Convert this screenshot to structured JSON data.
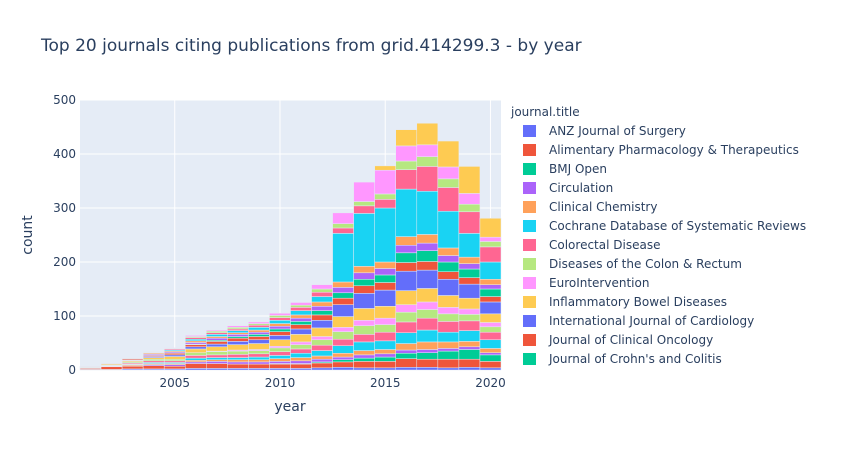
{
  "chart_data": {
    "type": "bar",
    "stacked": true,
    "title": "Top 20 journals citing publications from grid.414299.3 - by year",
    "xlabel": "year",
    "ylabel": "count",
    "xlim": [
      2000.5,
      2020.5
    ],
    "ylim": [
      0,
      500
    ],
    "x_ticks": [
      2005,
      2010,
      2015,
      2020
    ],
    "y_ticks": [
      0,
      100,
      200,
      300,
      400,
      500
    ],
    "legend": {
      "title": "journal.title",
      "placement": "right"
    },
    "years": [
      2001,
      2002,
      2003,
      2004,
      2005,
      2006,
      2007,
      2008,
      2009,
      2010,
      2011,
      2012,
      2013,
      2014,
      2015,
      2016,
      2017,
      2018,
      2019,
      2020
    ],
    "series": [
      {
        "name": "ANZ Journal of Surgery",
        "color": "#636efa",
        "values": [
          1,
          1,
          2,
          2,
          2,
          3,
          3,
          3,
          3,
          3,
          3,
          4,
          5,
          4,
          4,
          5,
          5,
          4,
          5,
          4
        ]
      },
      {
        "name": "Alimentary Pharmacology & Therapeutics",
        "color": "#EF553B",
        "values": [
          2,
          5,
          5,
          6,
          5,
          9,
          9,
          8,
          8,
          8,
          8,
          9,
          10,
          12,
          12,
          16,
          15,
          16,
          15,
          12
        ]
      },
      {
        "name": "BMJ Open",
        "color": "#00cc96",
        "values": [
          0,
          0,
          0,
          0,
          0,
          0,
          0,
          0,
          0,
          1,
          1,
          2,
          4,
          6,
          8,
          10,
          12,
          15,
          18,
          12
        ]
      },
      {
        "name": "Circulation",
        "color": "#ab63fa",
        "values": [
          0,
          0,
          1,
          2,
          3,
          3,
          4,
          4,
          4,
          4,
          5,
          5,
          5,
          6,
          6,
          6,
          6,
          5,
          5,
          4
        ]
      },
      {
        "name": "Clinical Chemistry",
        "color": "#FFA15A",
        "values": [
          0,
          1,
          2,
          2,
          2,
          3,
          3,
          4,
          4,
          5,
          6,
          6,
          7,
          8,
          8,
          12,
          14,
          12,
          10,
          8
        ]
      },
      {
        "name": "Cochrane Database of Systematic Reviews",
        "color": "#19d3f3",
        "values": [
          0,
          0,
          1,
          2,
          2,
          4,
          4,
          4,
          5,
          6,
          8,
          10,
          14,
          16,
          16,
          20,
          22,
          18,
          20,
          16
        ]
      },
      {
        "name": "Colorectal Disease",
        "color": "#FF6692",
        "values": [
          1,
          1,
          2,
          3,
          3,
          5,
          5,
          6,
          6,
          7,
          8,
          10,
          12,
          14,
          16,
          20,
          22,
          20,
          18,
          14
        ]
      },
      {
        "name": "Diseases of the Colon & Rectum",
        "color": "#B6E880",
        "values": [
          1,
          1,
          2,
          3,
          3,
          5,
          6,
          6,
          6,
          7,
          8,
          10,
          14,
          16,
          14,
          18,
          16,
          14,
          12,
          10
        ]
      },
      {
        "name": "EuroIntervention",
        "color": "#FF97FF",
        "values": [
          0,
          0,
          0,
          0,
          0,
          0,
          1,
          2,
          2,
          3,
          5,
          6,
          8,
          10,
          12,
          14,
          14,
          12,
          10,
          8
        ]
      },
      {
        "name": "Inflammatory Bowel Diseases",
        "color": "#FECB52",
        "values": [
          1,
          2,
          2,
          3,
          5,
          7,
          8,
          10,
          11,
          12,
          14,
          16,
          20,
          22,
          22,
          26,
          25,
          22,
          20,
          16
        ]
      },
      {
        "name": "International Journal of Cardiology",
        "color": "#636efa",
        "values": [
          0,
          0,
          1,
          2,
          3,
          4,
          5,
          6,
          7,
          8,
          10,
          14,
          22,
          28,
          30,
          36,
          34,
          30,
          26,
          22
        ]
      },
      {
        "name": "Journal of Clinical Oncology",
        "color": "#EF553B",
        "values": [
          1,
          1,
          2,
          2,
          3,
          4,
          5,
          6,
          6,
          7,
          8,
          10,
          12,
          14,
          14,
          16,
          16,
          14,
          12,
          10
        ]
      },
      {
        "name": "Journal of Crohn's and Colitis",
        "color": "#00cc96",
        "values": [
          0,
          0,
          0,
          0,
          0,
          1,
          2,
          3,
          4,
          5,
          6,
          8,
          10,
          12,
          14,
          18,
          20,
          18,
          16,
          14
        ]
      },
      {
        "name": "",
        "color": "#ab63fa",
        "values": [
          0,
          0,
          1,
          2,
          2,
          3,
          4,
          4,
          4,
          5,
          6,
          8,
          10,
          12,
          12,
          14,
          14,
          12,
          10,
          8
        ]
      },
      {
        "name": "",
        "color": "#FFA15A",
        "values": [
          0,
          0,
          1,
          2,
          2,
          3,
          3,
          3,
          4,
          5,
          6,
          8,
          10,
          12,
          12,
          16,
          16,
          14,
          12,
          10
        ]
      },
      {
        "name": "",
        "color": "#19d3f3",
        "values": [
          0,
          0,
          0,
          1,
          2,
          3,
          4,
          4,
          5,
          6,
          8,
          10,
          90,
          98,
          100,
          88,
          80,
          68,
          44,
          32
        ]
      },
      {
        "name": "",
        "color": "#FF6692",
        "values": [
          0,
          0,
          0,
          1,
          2,
          3,
          3,
          3,
          4,
          5,
          6,
          8,
          10,
          14,
          16,
          36,
          46,
          44,
          40,
          28
        ]
      },
      {
        "name": "",
        "color": "#B6E880",
        "values": [
          0,
          0,
          0,
          1,
          1,
          2,
          3,
          3,
          3,
          4,
          4,
          6,
          8,
          8,
          10,
          16,
          18,
          16,
          14,
          10
        ]
      },
      {
        "name": "",
        "color": "#FF97FF",
        "values": [
          0,
          0,
          0,
          0,
          1,
          2,
          2,
          3,
          3,
          4,
          5,
          8,
          20,
          36,
          44,
          28,
          22,
          22,
          20,
          8
        ]
      },
      {
        "name": "",
        "color": "#FECB52",
        "values": [
          0,
          0,
          0,
          0,
          0,
          0,
          0,
          0,
          0,
          0,
          0,
          0,
          0,
          0,
          8,
          30,
          40,
          48,
          50,
          35
        ]
      }
    ]
  }
}
